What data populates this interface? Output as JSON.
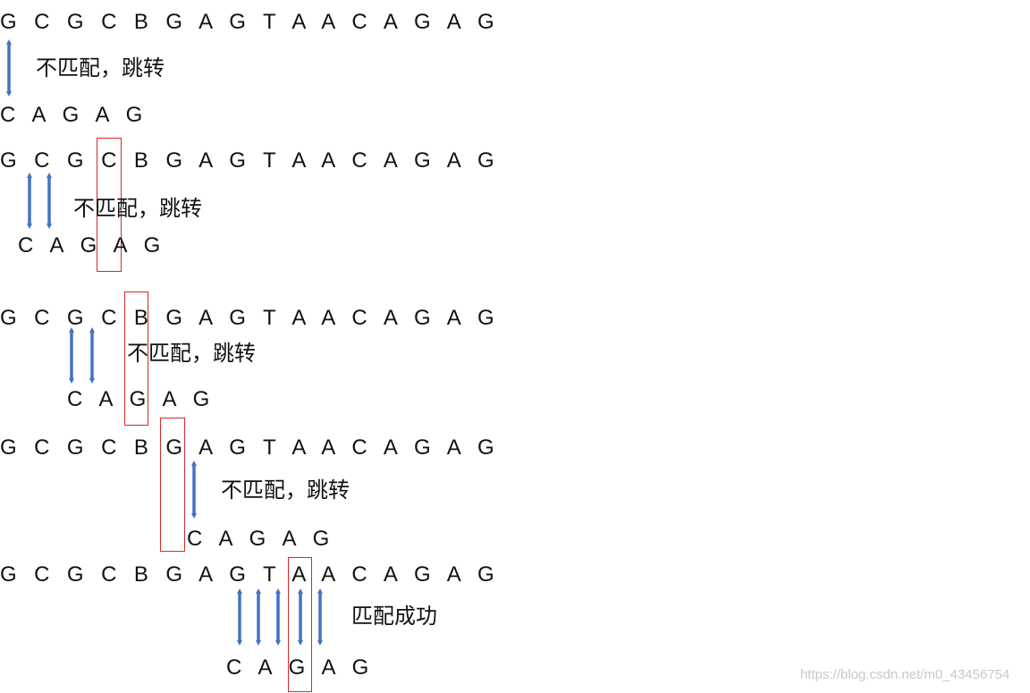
{
  "steps": [
    {
      "text": "G C G C B G A G T A A C A G A G",
      "pattern": "C A G A G",
      "note": "不匹配，跳转"
    },
    {
      "text": "G C G C B G A G T A A C A G A G",
      "pattern": "C A G A G",
      "note": "不匹配，跳转"
    },
    {
      "text": "G C G C B G A G T A A C A G A G",
      "pattern": "C A G A G",
      "note": "不匹配，跳转"
    },
    {
      "text": "G C G C B G A G T A A C A G A G",
      "pattern": "C A G A G",
      "note": "不匹配，跳转"
    },
    {
      "text": "G C G C B G A G T A A C A G A G",
      "pattern": "C A G A G",
      "note": "匹配成功"
    }
  ],
  "watermark": "https://blog.csdn.net/m0_43456754",
  "colors": {
    "arrow": "#4472c4",
    "highlight": "#d42a2a",
    "text": "#111111"
  }
}
